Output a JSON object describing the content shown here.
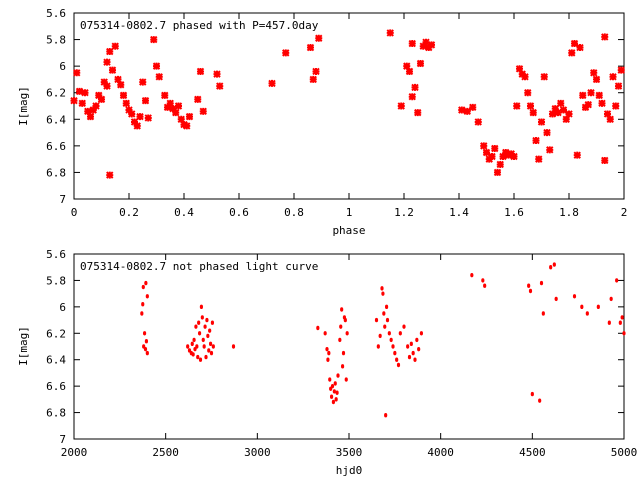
{
  "chart_data": [
    {
      "type": "scatter",
      "title": "075314-0802.7 phased with P=457.0day",
      "xlabel": "phase",
      "ylabel": "I[mag]",
      "xlim": [
        0,
        2
      ],
      "ylim": [
        5.6,
        7
      ],
      "y_inverted": true,
      "grid": false,
      "legend": "none",
      "color": "#ff0000",
      "xticks": [
        "0",
        "0.2",
        "0.4",
        "0.6",
        "0.8",
        "1",
        "1.2",
        "1.4",
        "1.6",
        "1.8",
        "2"
      ],
      "yticks": [
        "5.6",
        "5.8",
        "6",
        "6.2",
        "6.4",
        "6.6",
        "6.8",
        "7"
      ],
      "points": [
        [
          0.0,
          6.26
        ],
        [
          0.01,
          6.05
        ],
        [
          0.02,
          6.19
        ],
        [
          0.03,
          6.28
        ],
        [
          0.04,
          6.2
        ],
        [
          0.05,
          6.34
        ],
        [
          0.06,
          6.38
        ],
        [
          0.07,
          6.33
        ],
        [
          0.08,
          6.3
        ],
        [
          0.09,
          6.22
        ],
        [
          0.1,
          6.25
        ],
        [
          0.11,
          6.12
        ],
        [
          0.12,
          6.15
        ],
        [
          0.12,
          5.97
        ],
        [
          0.13,
          5.89
        ],
        [
          0.13,
          6.82
        ],
        [
          0.14,
          6.03
        ],
        [
          0.15,
          5.85
        ],
        [
          0.16,
          6.1
        ],
        [
          0.17,
          6.14
        ],
        [
          0.18,
          6.22
        ],
        [
          0.19,
          6.28
        ],
        [
          0.2,
          6.33
        ],
        [
          0.21,
          6.36
        ],
        [
          0.22,
          6.42
        ],
        [
          0.23,
          6.45
        ],
        [
          0.24,
          6.38
        ],
        [
          0.25,
          6.12
        ],
        [
          0.26,
          6.26
        ],
        [
          0.27,
          6.39
        ],
        [
          0.29,
          5.8
        ],
        [
          0.3,
          6.0
        ],
        [
          0.31,
          6.08
        ],
        [
          0.33,
          6.22
        ],
        [
          0.34,
          6.31
        ],
        [
          0.35,
          6.28
        ],
        [
          0.36,
          6.32
        ],
        [
          0.37,
          6.35
        ],
        [
          0.38,
          6.3
        ],
        [
          0.39,
          6.4
        ],
        [
          0.4,
          6.44
        ],
        [
          0.41,
          6.45
        ],
        [
          0.42,
          6.38
        ],
        [
          0.45,
          6.25
        ],
        [
          0.46,
          6.04
        ],
        [
          0.47,
          6.34
        ],
        [
          0.52,
          6.06
        ],
        [
          0.53,
          6.15
        ],
        [
          0.72,
          6.13
        ],
        [
          0.77,
          5.9
        ],
        [
          0.86,
          5.86
        ],
        [
          0.87,
          6.1
        ],
        [
          0.88,
          6.04
        ],
        [
          0.89,
          5.79
        ],
        [
          1.15,
          5.75
        ],
        [
          1.19,
          6.3
        ],
        [
          1.21,
          6.0
        ],
        [
          1.22,
          6.04
        ],
        [
          1.23,
          5.83
        ],
        [
          1.23,
          6.23
        ],
        [
          1.24,
          6.16
        ],
        [
          1.25,
          6.35
        ],
        [
          1.26,
          5.98
        ],
        [
          1.27,
          5.85
        ],
        [
          1.28,
          5.82
        ],
        [
          1.29,
          5.86
        ],
        [
          1.3,
          5.84
        ],
        [
          1.41,
          6.33
        ],
        [
          1.43,
          6.34
        ],
        [
          1.45,
          6.31
        ],
        [
          1.47,
          6.42
        ],
        [
          1.49,
          6.6
        ],
        [
          1.5,
          6.65
        ],
        [
          1.51,
          6.7
        ],
        [
          1.52,
          6.68
        ],
        [
          1.53,
          6.62
        ],
        [
          1.54,
          6.8
        ],
        [
          1.55,
          6.74
        ],
        [
          1.56,
          6.68
        ],
        [
          1.57,
          6.65
        ],
        [
          1.58,
          6.67
        ],
        [
          1.59,
          6.66
        ],
        [
          1.6,
          6.68
        ],
        [
          1.61,
          6.3
        ],
        [
          1.62,
          6.02
        ],
        [
          1.63,
          6.06
        ],
        [
          1.64,
          6.08
        ],
        [
          1.65,
          6.2
        ],
        [
          1.66,
          6.3
        ],
        [
          1.67,
          6.35
        ],
        [
          1.68,
          6.56
        ],
        [
          1.69,
          6.7
        ],
        [
          1.7,
          6.42
        ],
        [
          1.71,
          6.08
        ],
        [
          1.72,
          6.5
        ],
        [
          1.73,
          6.63
        ],
        [
          1.74,
          6.36
        ],
        [
          1.75,
          6.32
        ],
        [
          1.76,
          6.35
        ],
        [
          1.77,
          6.28
        ],
        [
          1.78,
          6.33
        ],
        [
          1.79,
          6.4
        ],
        [
          1.8,
          6.36
        ],
        [
          1.81,
          5.9
        ],
        [
          1.82,
          5.83
        ],
        [
          1.83,
          6.67
        ],
        [
          1.84,
          5.86
        ],
        [
          1.85,
          6.22
        ],
        [
          1.86,
          6.31
        ],
        [
          1.87,
          6.29
        ],
        [
          1.88,
          6.2
        ],
        [
          1.89,
          6.05
        ],
        [
          1.9,
          6.1
        ],
        [
          1.91,
          6.22
        ],
        [
          1.92,
          6.28
        ],
        [
          1.93,
          5.78
        ],
        [
          1.93,
          6.71
        ],
        [
          1.94,
          6.36
        ],
        [
          1.95,
          6.4
        ],
        [
          1.96,
          6.08
        ],
        [
          1.97,
          6.3
        ],
        [
          1.98,
          6.15
        ],
        [
          1.99,
          6.03
        ]
      ]
    },
    {
      "type": "scatter",
      "title": "075314-0802.7 not phased light curve",
      "xlabel": "hjd0",
      "ylabel": "I[mag]",
      "xlim": [
        2000,
        5000
      ],
      "ylim": [
        5.6,
        7
      ],
      "y_inverted": true,
      "grid": false,
      "legend": "none",
      "color": "#ff0000",
      "xticks": [
        "2000",
        "2500",
        "3000",
        "3500",
        "4000",
        "4500",
        "5000"
      ],
      "yticks": [
        "5.6",
        "5.8",
        "6",
        "6.2",
        "6.4",
        "6.6",
        "6.8",
        "7"
      ],
      "points": [
        [
          2370,
          6.05
        ],
        [
          2375,
          5.98
        ],
        [
          2378,
          5.85
        ],
        [
          2380,
          6.3
        ],
        [
          2385,
          6.2
        ],
        [
          2390,
          6.32
        ],
        [
          2392,
          5.82
        ],
        [
          2395,
          6.26
        ],
        [
          2400,
          5.92
        ],
        [
          2400,
          6.35
        ],
        [
          2620,
          6.3
        ],
        [
          2630,
          6.33
        ],
        [
          2640,
          6.35
        ],
        [
          2645,
          6.28
        ],
        [
          2650,
          6.36
        ],
        [
          2655,
          6.25
        ],
        [
          2660,
          6.32
        ],
        [
          2665,
          6.15
        ],
        [
          2670,
          6.3
        ],
        [
          2675,
          6.38
        ],
        [
          2680,
          6.12
        ],
        [
          2685,
          6.2
        ],
        [
          2690,
          6.4
        ],
        [
          2695,
          6.0
        ],
        [
          2700,
          6.08
        ],
        [
          2705,
          6.25
        ],
        [
          2710,
          6.3
        ],
        [
          2715,
          6.15
        ],
        [
          2720,
          6.38
        ],
        [
          2725,
          6.1
        ],
        [
          2730,
          6.22
        ],
        [
          2735,
          6.33
        ],
        [
          2740,
          6.18
        ],
        [
          2745,
          6.28
        ],
        [
          2750,
          6.35
        ],
        [
          2755,
          6.12
        ],
        [
          2760,
          6.3
        ],
        [
          2870,
          6.3
        ],
        [
          3330,
          6.16
        ],
        [
          3370,
          6.2
        ],
        [
          3380,
          6.32
        ],
        [
          3385,
          6.4
        ],
        [
          3390,
          6.35
        ],
        [
          3395,
          6.55
        ],
        [
          3400,
          6.62
        ],
        [
          3405,
          6.68
        ],
        [
          3410,
          6.6
        ],
        [
          3415,
          6.72
        ],
        [
          3420,
          6.64
        ],
        [
          3425,
          6.58
        ],
        [
          3430,
          6.7
        ],
        [
          3435,
          6.65
        ],
        [
          3440,
          6.52
        ],
        [
          3450,
          6.25
        ],
        [
          3455,
          6.15
        ],
        [
          3460,
          6.02
        ],
        [
          3465,
          6.45
        ],
        [
          3470,
          6.35
        ],
        [
          3475,
          6.08
        ],
        [
          3480,
          6.1
        ],
        [
          3485,
          6.55
        ],
        [
          3490,
          6.2
        ],
        [
          3650,
          6.1
        ],
        [
          3660,
          6.3
        ],
        [
          3670,
          6.22
        ],
        [
          3680,
          5.86
        ],
        [
          3685,
          5.9
        ],
        [
          3690,
          6.05
        ],
        [
          3695,
          6.15
        ],
        [
          3700,
          6.82
        ],
        [
          3705,
          6.0
        ],
        [
          3710,
          6.1
        ],
        [
          3720,
          6.2
        ],
        [
          3730,
          6.25
        ],
        [
          3740,
          6.3
        ],
        [
          3750,
          6.35
        ],
        [
          3760,
          6.4
        ],
        [
          3770,
          6.44
        ],
        [
          3780,
          6.2
        ],
        [
          3800,
          6.15
        ],
        [
          3820,
          6.3
        ],
        [
          3830,
          6.38
        ],
        [
          3840,
          6.28
        ],
        [
          3850,
          6.35
        ],
        [
          3860,
          6.4
        ],
        [
          3870,
          6.25
        ],
        [
          3880,
          6.32
        ],
        [
          3895,
          6.2
        ],
        [
          4170,
          5.76
        ],
        [
          4230,
          5.8
        ],
        [
          4240,
          5.84
        ],
        [
          4480,
          5.84
        ],
        [
          4490,
          5.88
        ],
        [
          4500,
          6.66
        ],
        [
          4540,
          6.71
        ],
        [
          4550,
          5.82
        ],
        [
          4560,
          6.05
        ],
        [
          4600,
          5.7
        ],
        [
          4620,
          5.68
        ],
        [
          4630,
          5.94
        ],
        [
          4730,
          5.92
        ],
        [
          4770,
          6.0
        ],
        [
          4800,
          6.05
        ],
        [
          4860,
          6.0
        ],
        [
          4920,
          6.12
        ],
        [
          4930,
          5.94
        ],
        [
          4960,
          5.8
        ],
        [
          4980,
          6.12
        ],
        [
          4990,
          6.08
        ],
        [
          5000,
          6.2
        ]
      ]
    }
  ]
}
